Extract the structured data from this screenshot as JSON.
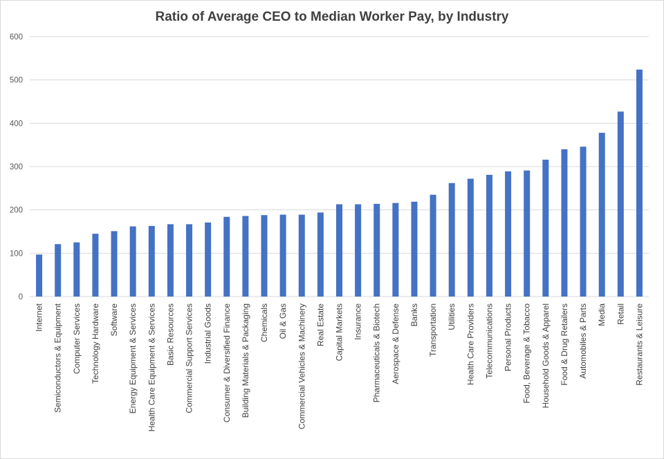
{
  "chart_data": {
    "type": "bar",
    "title": "Ratio of Average CEO to Median Worker Pay, by Industry",
    "xlabel": "",
    "ylabel": "",
    "ylim": [
      0,
      600
    ],
    "yticks": [
      0,
      100,
      200,
      300,
      400,
      500,
      600
    ],
    "grid": true,
    "bar_color": "#4472c4",
    "grid_color": "#d9d9d9",
    "categories": [
      "Internet",
      "Semiconductors & Equipment",
      "Computer Services",
      "Technology Hardware",
      "Software",
      "Energy Equipment & Services",
      "Health Care Equipment & Services",
      "Basic Resources",
      "Commercial Support Services",
      "Industrial Goods",
      "Consumer & Diversified Finance",
      "Building Materials & Packaging",
      "Chemicals",
      "Oil & Gas",
      "Commercial Vehicles & Machinery",
      "Real Estate",
      "Capital Markets",
      "Insurance",
      "Pharmaceuticals & Biotech",
      "Aerospace & Defense",
      "Banks",
      "Transportation",
      "Utilities",
      "Health Care Providers",
      "Telecommunications",
      "Personal Products",
      "Food, Beverage & Tobacco",
      "Household Goods & Apparel",
      "Food & Drug Retailers",
      "Automobiles & Parts",
      "Media",
      "Retail",
      "Restaurants & Leisure"
    ],
    "values": [
      97,
      121,
      125,
      145,
      151,
      162,
      163,
      167,
      167,
      171,
      184,
      186,
      188,
      189,
      189,
      194,
      213,
      213,
      214,
      216,
      219,
      235,
      262,
      272,
      281,
      289,
      291,
      316,
      340,
      346,
      378,
      427,
      524
    ]
  }
}
